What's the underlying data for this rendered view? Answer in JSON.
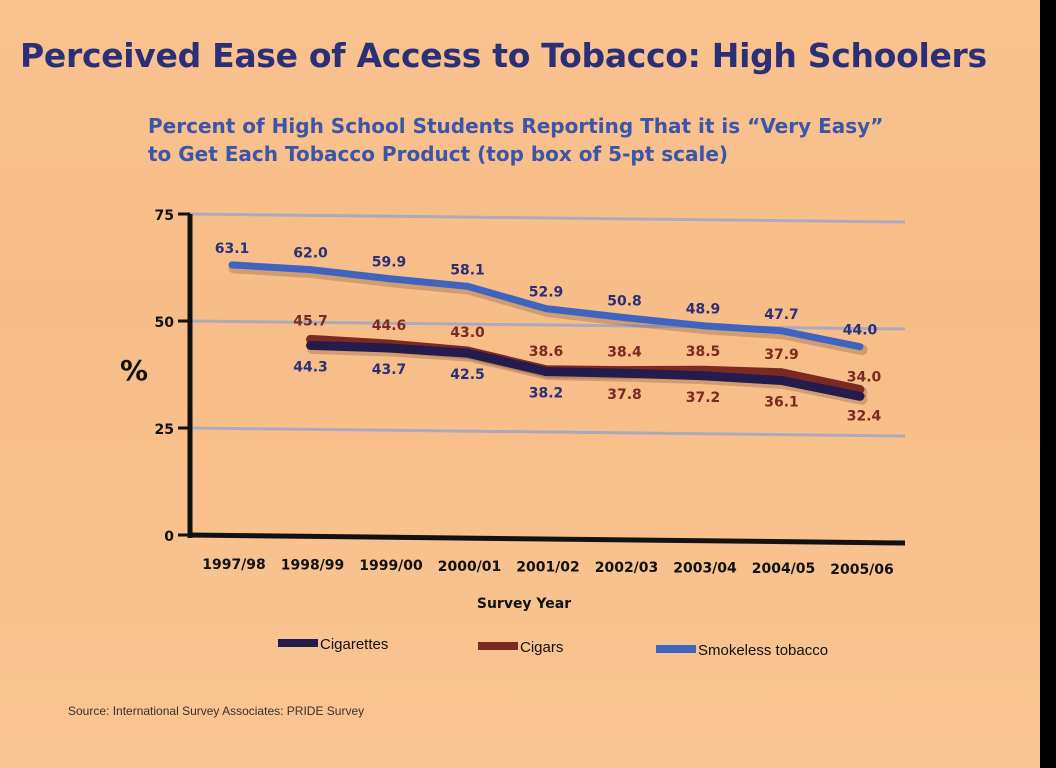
{
  "title": "Perceived Ease of Access to Tobacco: High Schoolers",
  "subtitle_lines": [
    "Percent of High School Students Reporting That it is “Very Easy”",
    "to Get Each Tobacco Product (top box of 5-pt scale)"
  ],
  "source": "Source: International Survey Associates: PRIDE Survey",
  "colors": {
    "Cigarettes": "#241c4c",
    "Cigars": "#7a2a22",
    "Smokeless tobacco": "#3f64c0",
    "title": "#2b2f78",
    "gridline": "#9aa3cc",
    "axis": "#111111"
  },
  "chart_data": {
    "type": "line",
    "title": "Perceived Ease of Access to Tobacco: High Schoolers",
    "subtitle": "Percent of High School Students Reporting That it is “Very Easy” to Get Each Tobacco Product (top box of 5-pt scale)",
    "xlabel": "Survey Year",
    "ylabel": "%",
    "ylim": [
      0,
      75
    ],
    "yticks": [
      0,
      25,
      50,
      75
    ],
    "grid": true,
    "legend_position": "bottom",
    "categories": [
      "1997/98",
      "1998/99",
      "1999/00",
      "2000/01",
      "2001/02",
      "2002/03",
      "2003/04",
      "2004/05",
      "2005/06"
    ],
    "series": [
      {
        "name": "Cigarettes",
        "values": [
          null,
          44.3,
          43.7,
          42.5,
          38.2,
          37.8,
          37.2,
          36.1,
          32.4
        ]
      },
      {
        "name": "Cigars",
        "values": [
          null,
          45.7,
          44.6,
          43.0,
          38.6,
          38.4,
          38.5,
          37.9,
          34.0
        ]
      },
      {
        "name": "Smokeless tobacco",
        "values": [
          63.1,
          62.0,
          59.9,
          58.1,
          52.9,
          50.8,
          48.9,
          47.7,
          44.0
        ]
      }
    ]
  }
}
